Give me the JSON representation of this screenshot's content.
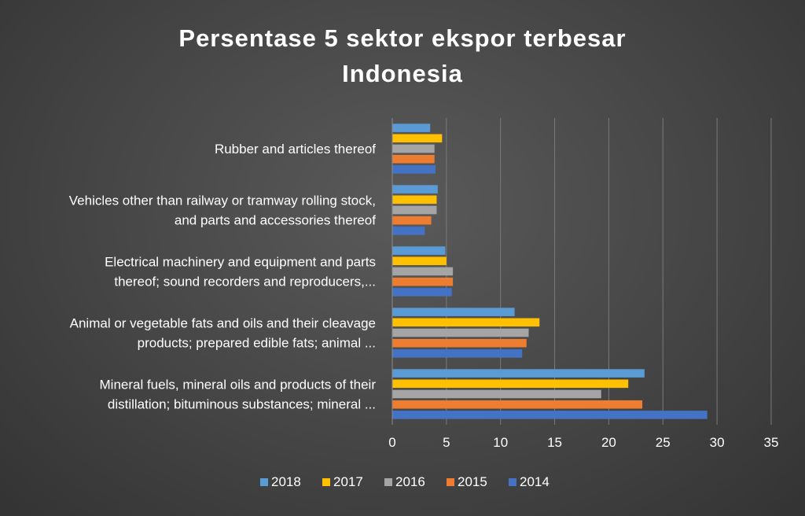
{
  "chart_data": {
    "type": "bar",
    "orientation": "horizontal",
    "title": "Persentase 5 sektor ekspor terbesar\nIndonesia",
    "categories": [
      [
        "Mineral fuels, mineral oils and products of their",
        "distillation; bituminous substances; mineral ..."
      ],
      [
        "Animal or vegetable fats and oils and their cleavage",
        "products; prepared edible fats; animal ..."
      ],
      [
        "Electrical machinery and equipment and parts",
        "thereof; sound recorders and reproducers,..."
      ],
      [
        "Vehicles other than railway or tramway rolling stock,",
        "and parts and accessories thereof"
      ],
      [
        "Rubber and articles thereof"
      ]
    ],
    "series": [
      {
        "name": "2018",
        "color": "#5b9bd5",
        "values": [
          23.3,
          11.3,
          4.9,
          4.2,
          3.5
        ]
      },
      {
        "name": "2017",
        "color": "#ffc000",
        "values": [
          21.8,
          13.6,
          5.0,
          4.1,
          4.6
        ]
      },
      {
        "name": "2016",
        "color": "#a5a5a5",
        "values": [
          19.3,
          12.6,
          5.6,
          4.1,
          3.9
        ]
      },
      {
        "name": "2015",
        "color": "#ed7d31",
        "values": [
          23.1,
          12.4,
          5.6,
          3.6,
          3.9
        ]
      },
      {
        "name": "2014",
        "color": "#4472c4",
        "values": [
          29.1,
          12.0,
          5.5,
          3.0,
          4.0
        ]
      }
    ],
    "xlim": [
      0,
      35
    ],
    "xticks": [
      "0",
      "5",
      "10",
      "15",
      "20",
      "25",
      "30",
      "35"
    ],
    "grid": true,
    "legend_position": "bottom"
  }
}
